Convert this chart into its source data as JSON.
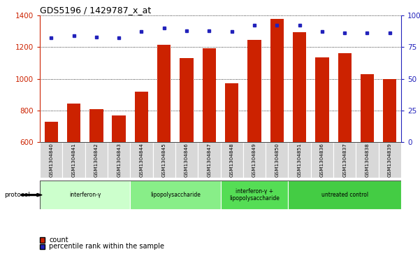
{
  "title": "GDS5196 / 1429787_x_at",
  "samples": [
    "GSM1304840",
    "GSM1304841",
    "GSM1304842",
    "GSM1304843",
    "GSM1304844",
    "GSM1304845",
    "GSM1304846",
    "GSM1304847",
    "GSM1304848",
    "GSM1304849",
    "GSM1304850",
    "GSM1304851",
    "GSM1304836",
    "GSM1304837",
    "GSM1304838",
    "GSM1304839"
  ],
  "counts": [
    730,
    845,
    810,
    768,
    920,
    1215,
    1130,
    1190,
    970,
    1245,
    1375,
    1295,
    1135,
    1160,
    1030,
    1000
  ],
  "percentile": [
    82,
    84,
    83,
    82,
    87,
    90,
    88,
    88,
    87,
    92,
    92,
    92,
    87,
    86,
    86,
    86
  ],
  "bar_color": "#cc2200",
  "dot_color": "#2222bb",
  "ylim_left": [
    600,
    1400
  ],
  "ylim_right": [
    0,
    100
  ],
  "yticks_left": [
    600,
    800,
    1000,
    1200,
    1400
  ],
  "yticks_right": [
    0,
    25,
    50,
    75,
    100
  ],
  "ytick_labels_right": [
    "0",
    "25",
    "50",
    "75",
    "100%"
  ],
  "groups": [
    {
      "label": "interferon-γ",
      "count": 4,
      "color": "#ccffcc"
    },
    {
      "label": "lipopolysaccharide",
      "count": 4,
      "color": "#88ee88"
    },
    {
      "label": "interferon-γ +\nlipopolysaccharide",
      "count": 3,
      "color": "#55dd55"
    },
    {
      "label": "untreated control",
      "count": 5,
      "color": "#44cc44"
    }
  ],
  "legend_count_label": "count",
  "legend_pct_label": "percentile rank within the sample",
  "protocol_label": "protocol",
  "background_color": "#ffffff",
  "plot_bg_color": "#ffffff",
  "tick_label_color_left": "#cc2200",
  "tick_label_color_right": "#2222bb",
  "sample_label_bg": "#d8d8d8"
}
